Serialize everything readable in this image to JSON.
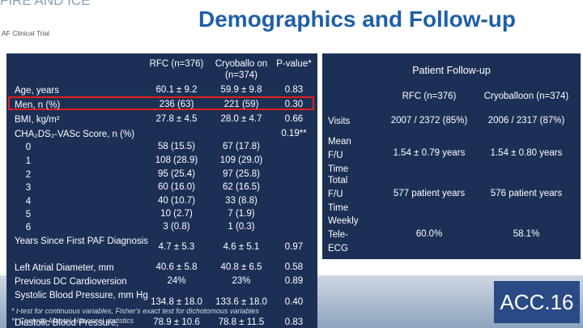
{
  "header": {
    "brand": "FIRE AND ICE",
    "subtitle": "AF Clinical Trial",
    "title": "Demographics and Follow-up"
  },
  "demographics": {
    "columns": [
      "RFC (n=376)",
      "Cryoballo on (n=374)",
      "P-value*"
    ],
    "rows": [
      [
        "Age, years",
        "60.1 ± 9.2",
        "59.9 ± 9.8",
        "0.83"
      ],
      [
        "Men, n (%)",
        "236 (63)",
        "221 (59)",
        "0.30"
      ],
      [
        "BMI, kg/m²",
        "27.8 ± 4.5",
        "28.0 ± 4.7",
        "0.66"
      ],
      [
        "CHA₂DS₂-VASc Score, n (%)",
        "",
        "",
        "0.19**"
      ],
      [
        "0",
        "58 (15.5)",
        "67 (17.8)",
        ""
      ],
      [
        "1",
        "108 (28.9)",
        "109 (29.0)",
        ""
      ],
      [
        "2",
        "95 (25.4)",
        "97 (25.8)",
        ""
      ],
      [
        "3",
        "60 (16.0)",
        "62 (16.5)",
        ""
      ],
      [
        "4",
        "40 (10.7)",
        "33 (8.8)",
        ""
      ],
      [
        "5",
        "10 (2.7)",
        "7 (1.9)",
        ""
      ],
      [
        "6",
        "3 (0.8)",
        "1 (0.3)",
        ""
      ],
      [
        "Years Since First PAF Diagnosis",
        "4.7 ± 5.3",
        "4.6 ± 5.1",
        "0.97"
      ],
      [
        "Left Atrial Diameter, mm",
        "40.6 ± 5.8",
        "40.8 ± 6.5",
        "0.58"
      ],
      [
        "Previous DC Cardioversion",
        "24%",
        "23%",
        "0.89"
      ],
      [
        "Systolic Blood Pressure, mm Hg",
        "134.8 ± 18.0",
        "133.6 ± 18.0",
        "0.40"
      ],
      [
        "Diastolic Blood Pressure,",
        "78.9 ± 10.6",
        "78.8 ± 11.5",
        "0.83"
      ]
    ],
    "footnotes": [
      "* t-test for continuous variables, Fisher's exact test for dichotomous variables",
      "** Cochran-Mantel-Haenszel statistics"
    ]
  },
  "follow_up": {
    "title": "Patient Follow-up",
    "columns": [
      "RFC (n=376)",
      "Cryoballoon (n=374)"
    ],
    "rows": [
      [
        "Visits",
        "2007 / 2372 (85%)",
        "2006 / 2317 (87%)"
      ],
      [
        "Mean F/U Time",
        "1.54 ± 0.79 years",
        "1.54 ± 0.80 years"
      ],
      [
        "Total F/U Time",
        "577 patient years",
        "576 patient years"
      ],
      [
        "Weekly Tele-ECG",
        "60.0%",
        "58.1%"
      ]
    ]
  },
  "logo": "ACC.16"
}
